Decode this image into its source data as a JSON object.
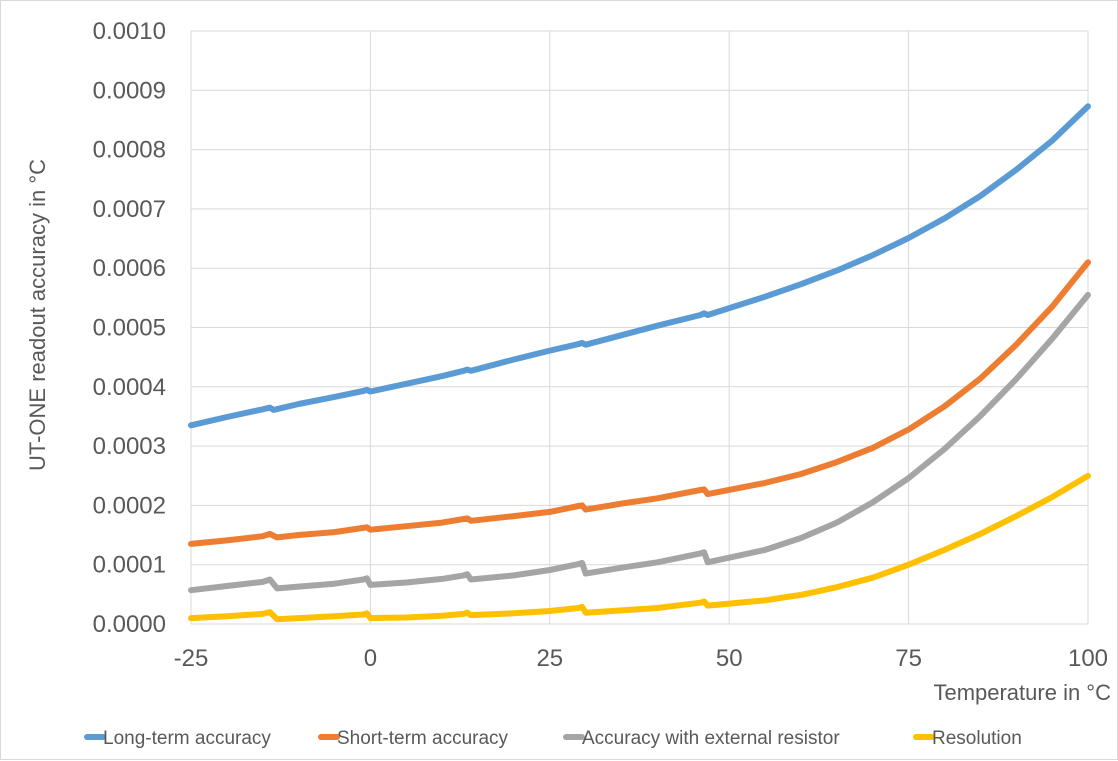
{
  "chart_data": {
    "type": "line",
    "title": "",
    "xlabel": "Temperature in °C",
    "ylabel": "UT-ONE readout accuracy in °C",
    "xlim": [
      -25,
      100
    ],
    "ylim": [
      0,
      0.001
    ],
    "xticks": [
      -25,
      0,
      25,
      50,
      75,
      100
    ],
    "xtick_labels": [
      "-25",
      "0",
      "25",
      "50",
      "75",
      "100"
    ],
    "yticks": [
      0,
      0.0001,
      0.0002,
      0.0003,
      0.0004,
      0.0005,
      0.0006,
      0.0007,
      0.0008,
      0.0009,
      0.001
    ],
    "ytick_labels": [
      "0.0000",
      "0.0001",
      "0.0002",
      "0.0003",
      "0.0004",
      "0.0005",
      "0.0006",
      "0.0007",
      "0.0008",
      "0.0009",
      "0.0010"
    ],
    "grid": true,
    "legend": "bottom",
    "series": [
      {
        "name": "Long-term accuracy",
        "color": "#5b9bd5",
        "points": [
          [
            -25,
            0.000335
          ],
          [
            -20,
            0.000349
          ],
          [
            -15,
            0.000362
          ],
          [
            -14,
            0.000365
          ],
          [
            -13.5,
            0.000361
          ],
          [
            -10,
            0.000371
          ],
          [
            -5,
            0.000383
          ],
          [
            -1,
            0.000393
          ],
          [
            -0.5,
            0.000395
          ],
          [
            0,
            0.000392
          ],
          [
            5,
            0.000405
          ],
          [
            10,
            0.000418
          ],
          [
            13,
            0.000427
          ],
          [
            13.5,
            0.000429
          ],
          [
            14,
            0.000427
          ],
          [
            20,
            0.000446
          ],
          [
            25,
            0.000461
          ],
          [
            29,
            0.000472
          ],
          [
            29.5,
            0.000474
          ],
          [
            30,
            0.000471
          ],
          [
            35,
            0.000487
          ],
          [
            40,
            0.000503
          ],
          [
            46,
            0.000521
          ],
          [
            46.5,
            0.000524
          ],
          [
            47,
            0.000521
          ],
          [
            55,
            0.000552
          ],
          [
            60,
            0.000573
          ],
          [
            65,
            0.000596
          ],
          [
            70,
            0.000622
          ],
          [
            75,
            0.000651
          ],
          [
            80,
            0.000684
          ],
          [
            85,
            0.000722
          ],
          [
            90,
            0.000766
          ],
          [
            95,
            0.000815
          ],
          [
            100,
            0.000873
          ]
        ]
      },
      {
        "name": "Short-term accuracy",
        "color": "#ed7d31",
        "points": [
          [
            -25,
            0.000135
          ],
          [
            -20,
            0.000141
          ],
          [
            -15,
            0.000148
          ],
          [
            -14,
            0.000152
          ],
          [
            -13,
            0.000146
          ],
          [
            -10,
            0.00015
          ],
          [
            -5,
            0.000155
          ],
          [
            -1,
            0.000162
          ],
          [
            -0.5,
            0.000163
          ],
          [
            0,
            0.000159
          ],
          [
            5,
            0.000165
          ],
          [
            10,
            0.000171
          ],
          [
            13,
            0.000177
          ],
          [
            13.5,
            0.000178
          ],
          [
            14,
            0.000174
          ],
          [
            20,
            0.000182
          ],
          [
            25,
            0.000189
          ],
          [
            29,
            0.000199
          ],
          [
            29.5,
            0.0002
          ],
          [
            30,
            0.000193
          ],
          [
            35,
            0.000203
          ],
          [
            40,
            0.000212
          ],
          [
            46,
            0.000226
          ],
          [
            46.5,
            0.000227
          ],
          [
            47,
            0.000219
          ],
          [
            55,
            0.000238
          ],
          [
            60,
            0.000253
          ],
          [
            65,
            0.000273
          ],
          [
            70,
            0.000297
          ],
          [
            75,
            0.000328
          ],
          [
            80,
            0.000367
          ],
          [
            85,
            0.000414
          ],
          [
            90,
            0.000471
          ],
          [
            95,
            0.000535
          ],
          [
            100,
            0.00061
          ]
        ]
      },
      {
        "name": "Accuracy with external resistor",
        "color": "#a5a5a5",
        "points": [
          [
            -25,
            5.7e-05
          ],
          [
            -20,
            6.4e-05
          ],
          [
            -15,
            7.1e-05
          ],
          [
            -14,
            7.5e-05
          ],
          [
            -13,
            6e-05
          ],
          [
            -10,
            6.3e-05
          ],
          [
            -5,
            6.8e-05
          ],
          [
            -1,
            7.5e-05
          ],
          [
            -0.5,
            7.7e-05
          ],
          [
            0,
            6.6e-05
          ],
          [
            5,
            7e-05
          ],
          [
            10,
            7.6e-05
          ],
          [
            13,
            8.2e-05
          ],
          [
            13.5,
            8.4e-05
          ],
          [
            14,
            7.5e-05
          ],
          [
            20,
            8.2e-05
          ],
          [
            25,
            9.1e-05
          ],
          [
            29,
            0.000101
          ],
          [
            29.5,
            0.000103
          ],
          [
            30,
            8.5e-05
          ],
          [
            35,
            9.5e-05
          ],
          [
            40,
            0.000104
          ],
          [
            46,
            0.000119
          ],
          [
            46.5,
            0.000121
          ],
          [
            47,
            0.000104
          ],
          [
            55,
            0.000125
          ],
          [
            60,
            0.000145
          ],
          [
            65,
            0.000171
          ],
          [
            70,
            0.000205
          ],
          [
            75,
            0.000246
          ],
          [
            80,
            0.000295
          ],
          [
            85,
            0.000351
          ],
          [
            90,
            0.000413
          ],
          [
            95,
            0.000481
          ],
          [
            100,
            0.000555
          ]
        ]
      },
      {
        "name": "Resolution",
        "color": "#ffc000",
        "points": [
          [
            -25,
            1e-05
          ],
          [
            -20,
            1.3e-05
          ],
          [
            -15,
            1.7e-05
          ],
          [
            -14,
            2e-05
          ],
          [
            -13,
            8e-06
          ],
          [
            -10,
            1e-05
          ],
          [
            -5,
            1.3e-05
          ],
          [
            -1,
            1.6e-05
          ],
          [
            -0.5,
            1.8e-05
          ],
          [
            0,
            1e-05
          ],
          [
            5,
            1.1e-05
          ],
          [
            10,
            1.4e-05
          ],
          [
            13,
            1.7e-05
          ],
          [
            13.5,
            1.9e-05
          ],
          [
            14,
            1.5e-05
          ],
          [
            20,
            1.8e-05
          ],
          [
            25,
            2.2e-05
          ],
          [
            29,
            2.7e-05
          ],
          [
            29.5,
            2.9e-05
          ],
          [
            30,
            1.9e-05
          ],
          [
            35,
            2.3e-05
          ],
          [
            40,
            2.7e-05
          ],
          [
            46,
            3.6e-05
          ],
          [
            46.5,
            3.8e-05
          ],
          [
            47,
            3.1e-05
          ],
          [
            55,
            4e-05
          ],
          [
            60,
            4.9e-05
          ],
          [
            65,
            6.2e-05
          ],
          [
            70,
            7.8e-05
          ],
          [
            75,
            0.0001
          ],
          [
            80,
            0.000125
          ],
          [
            85,
            0.000152
          ],
          [
            90,
            0.000182
          ],
          [
            95,
            0.000214
          ],
          [
            100,
            0.00025
          ]
        ]
      }
    ]
  }
}
